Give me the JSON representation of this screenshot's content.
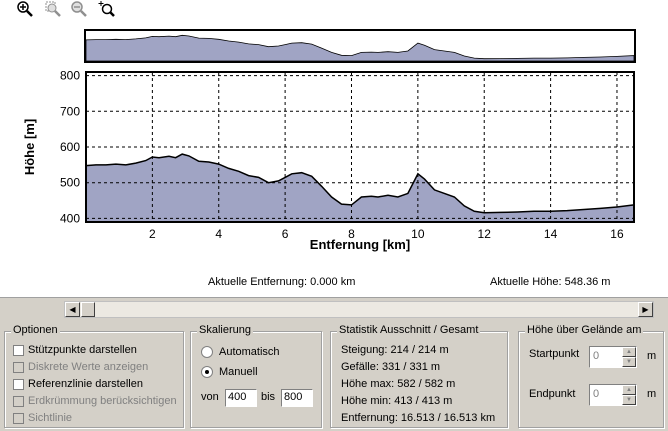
{
  "chart_data": {
    "type": "area",
    "xlabel": "Entfernung [km]",
    "ylabel": "Höhe [m]",
    "xlim": [
      0,
      16.513
    ],
    "ylim": [
      390,
      810
    ],
    "x_ticks": [
      2,
      4,
      6,
      8,
      10,
      12,
      14,
      16
    ],
    "y_ticks": [
      400,
      500,
      600,
      700,
      800
    ],
    "grid": true,
    "x": [
      0,
      0.3,
      0.6,
      0.9,
      1.2,
      1.5,
      1.8,
      2.0,
      2.2,
      2.5,
      2.7,
      2.9,
      3.1,
      3.4,
      3.7,
      4.0,
      4.3,
      4.6,
      4.9,
      5.2,
      5.5,
      5.8,
      6.0,
      6.2,
      6.5,
      6.8,
      7.1,
      7.4,
      7.7,
      8.0,
      8.3,
      8.6,
      8.8,
      9.1,
      9.4,
      9.7,
      10.0,
      10.2,
      10.5,
      10.8,
      11.1,
      11.4,
      11.7,
      12.0,
      12.5,
      13.0,
      13.5,
      14.0,
      14.5,
      15.0,
      15.5,
      16.0,
      16.513
    ],
    "y": [
      548,
      550,
      550,
      552,
      550,
      555,
      562,
      572,
      570,
      574,
      570,
      580,
      575,
      560,
      558,
      552,
      540,
      532,
      520,
      515,
      500,
      505,
      515,
      525,
      528,
      518,
      490,
      460,
      440,
      438,
      460,
      462,
      460,
      465,
      460,
      470,
      525,
      510,
      480,
      470,
      460,
      435,
      420,
      416,
      417,
      418,
      420,
      420,
      422,
      425,
      428,
      432,
      438
    ]
  },
  "toolbar": {
    "zoom_in": "zoom-in-icon",
    "zoom_area": "zoom-area-icon",
    "zoom_out": "zoom-out-icon",
    "zoom_reset": "zoom-reset-icon"
  },
  "readouts": {
    "distance": "Aktuelle Entfernung: 0.000 km",
    "height": "Aktuelle Höhe: 548.36 m"
  },
  "scrollbar": {
    "position": 0.0
  },
  "optionen": {
    "title": "Optionen",
    "items": [
      {
        "label": "Stützpunkte darstellen",
        "checked": false,
        "enabled": true
      },
      {
        "label": "Diskrete Werte anzeigen",
        "checked": false,
        "enabled": false
      },
      {
        "label": "Referenzlinie darstellen",
        "checked": false,
        "enabled": true
      },
      {
        "label": "Erdkrümmung berücksichtigen",
        "checked": false,
        "enabled": false
      },
      {
        "label": "Sichtlinie",
        "checked": false,
        "enabled": false
      }
    ]
  },
  "skalierung": {
    "title": "Skalierung",
    "automatic_label": "Automatisch",
    "manual_label": "Manuell",
    "selected": "manual",
    "from_label": "von",
    "from_value": "400",
    "to_label": "bis",
    "to_value": "800"
  },
  "statistik": {
    "title": "Statistik  Ausschnitt / Gesamt",
    "lines": [
      "Steigung: 214 / 214 m",
      "Gefälle: 331 / 331 m",
      "Höhe max: 582 / 582 m",
      "Höhe min: 413 / 413 m",
      "Entfernung: 16.513 / 16.513 km"
    ]
  },
  "hoehe_gelaende": {
    "title": "Höhe über Gelände am",
    "start_label": "Startpunkt",
    "start_value": "0",
    "start_unit": "m",
    "end_label": "Endpunkt",
    "end_value": "0",
    "end_unit": "m"
  },
  "colors": {
    "fill": "#a0a4c4",
    "line": "#000000",
    "grid": "#000000"
  }
}
